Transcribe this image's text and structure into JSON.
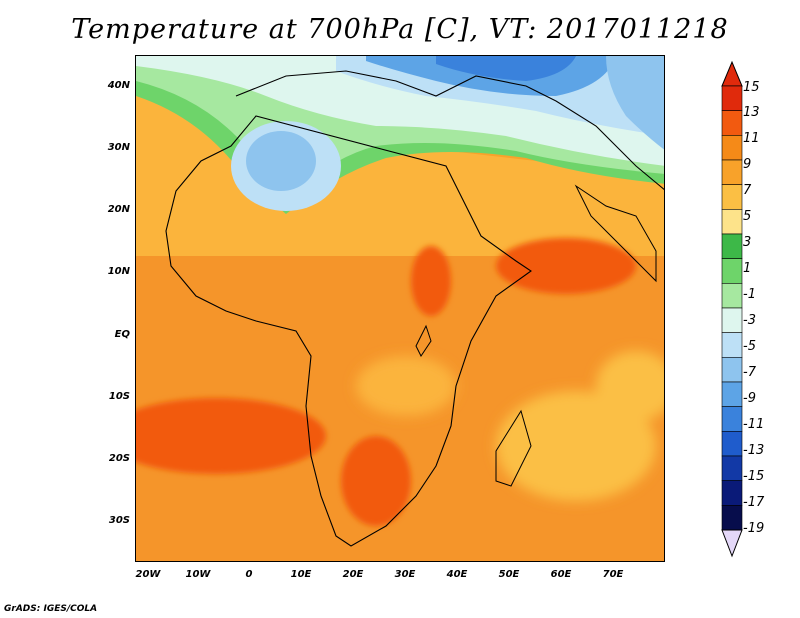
{
  "title": "Temperature at 700hPa [C], VT: 2017011218",
  "credit": "GrADS: IGES/COLA",
  "lat_labels": [
    "40N",
    "30N",
    "20N",
    "10N",
    "EQ",
    "10S",
    "20S",
    "30S"
  ],
  "lon_labels": [
    "20W",
    "10W",
    "0",
    "10E",
    "20E",
    "30E",
    "40E",
    "50E",
    "60E",
    "70E"
  ],
  "colorbar": {
    "labels": [
      "15",
      "13",
      "11",
      "9",
      "7",
      "5",
      "3",
      "1",
      "-1",
      "-3",
      "-5",
      "-7",
      "-9",
      "-11",
      "-13",
      "-15",
      "-17",
      "-19"
    ],
    "colors": [
      "#a50a0a",
      "#e02a0c",
      "#f25a10",
      "#f58a18",
      "#f8a22a",
      "#fbbf44",
      "#fde38a",
      "#3db848",
      "#6ed46a",
      "#a6e8a0",
      "#def6ee",
      "#bde0f6",
      "#8ec4ee",
      "#5da4e6",
      "#3a82dc",
      "#1f5ccc",
      "#1239a6",
      "#0a1a78",
      "#070d4c",
      "#e4d8f8"
    ]
  },
  "legend_colors": {
    "warm_max": "#e83a10",
    "cold_min": "#1f5ccc",
    "land_border": "#000000"
  }
}
